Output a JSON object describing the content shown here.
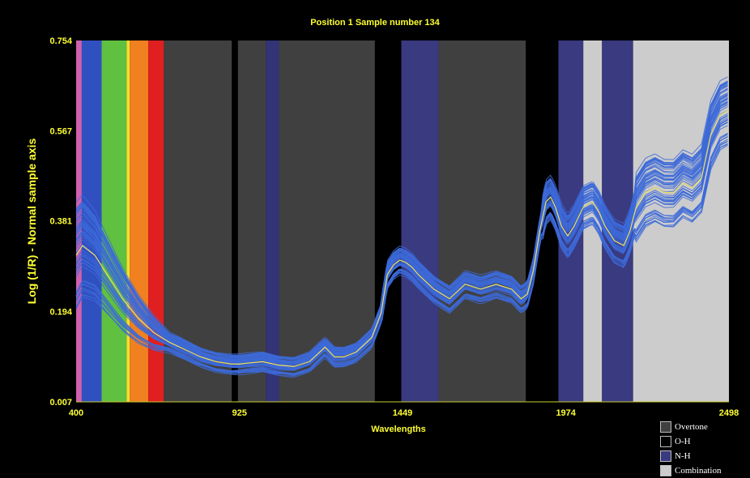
{
  "chart_data": {
    "type": "line",
    "title": "Position 1  Sample number 134",
    "xlabel": "Wavelengths",
    "ylabel": "Log (1/R) - Normal sample axis",
    "xlim": [
      400,
      2498
    ],
    "ylim": [
      0.007,
      0.754
    ],
    "x_ticks": [
      "400",
      "925",
      "1449",
      "1974",
      "2498"
    ],
    "y_ticks": [
      "0.754",
      "0.567",
      "0.381",
      "0.194",
      "0.007"
    ],
    "grid": false,
    "legend_position": "bottom-right",
    "bands": [
      {
        "from": 400,
        "to": 418,
        "color": "#d060b0"
      },
      {
        "from": 418,
        "to": 482,
        "color": "#3050c0"
      },
      {
        "from": 482,
        "to": 562,
        "color": "#60c040"
      },
      {
        "from": 562,
        "to": 572,
        "color": "#f0e030"
      },
      {
        "from": 572,
        "to": 632,
        "color": "#f08020"
      },
      {
        "from": 632,
        "to": 682,
        "color": "#e02020"
      },
      {
        "from": 682,
        "to": 900,
        "color": "#404040"
      },
      {
        "from": 920,
        "to": 1010,
        "color": "#404040"
      },
      {
        "from": 1010,
        "to": 1052,
        "color": "#333377"
      },
      {
        "from": 1052,
        "to": 1360,
        "color": "#404040"
      },
      {
        "from": 1445,
        "to": 1565,
        "color": "#3a3a80"
      },
      {
        "from": 1565,
        "to": 1845,
        "color": "#404040"
      },
      {
        "from": 1950,
        "to": 2030,
        "color": "#3a3a80"
      },
      {
        "from": 2030,
        "to": 2090,
        "color": "#cccccc"
      },
      {
        "from": 2090,
        "to": 2190,
        "color": "#3a3a80"
      },
      {
        "from": 2190,
        "to": 2498,
        "color": "#cccccc"
      }
    ],
    "mean_spectrum": {
      "name": "mean",
      "color": "#f0e060",
      "x": [
        400,
        420,
        440,
        460,
        500,
        550,
        600,
        650,
        700,
        750,
        800,
        850,
        900,
        925,
        950,
        1000,
        1050,
        1100,
        1150,
        1200,
        1230,
        1260,
        1300,
        1350,
        1380,
        1400,
        1420,
        1440,
        1460,
        1480,
        1500,
        1550,
        1600,
        1650,
        1700,
        1750,
        1800,
        1830,
        1850,
        1870,
        1890,
        1910,
        1925,
        1940,
        1960,
        1980,
        2000,
        2030,
        2060,
        2080,
        2100,
        2130,
        2160,
        2180,
        2200,
        2230,
        2260,
        2290,
        2320,
        2350,
        2380,
        2410,
        2440,
        2470,
        2498
      ],
      "y": [
        0.31,
        0.33,
        0.32,
        0.31,
        0.27,
        0.22,
        0.18,
        0.15,
        0.13,
        0.115,
        0.1,
        0.09,
        0.085,
        0.085,
        0.087,
        0.09,
        0.083,
        0.08,
        0.09,
        0.12,
        0.1,
        0.1,
        0.11,
        0.14,
        0.19,
        0.27,
        0.29,
        0.3,
        0.295,
        0.285,
        0.27,
        0.24,
        0.22,
        0.25,
        0.24,
        0.25,
        0.24,
        0.22,
        0.23,
        0.28,
        0.36,
        0.42,
        0.43,
        0.41,
        0.37,
        0.35,
        0.37,
        0.41,
        0.42,
        0.4,
        0.37,
        0.34,
        0.33,
        0.36,
        0.41,
        0.44,
        0.45,
        0.44,
        0.44,
        0.46,
        0.45,
        0.47,
        0.56,
        0.6,
        0.61
      ]
    },
    "sample_count": 60,
    "sample_color": "#3d6ad8",
    "legend": [
      {
        "label": "Overtone",
        "color": "#404040"
      },
      {
        "label": "O-H",
        "color": "#000000"
      },
      {
        "label": "N-H",
        "color": "#3a3a80"
      },
      {
        "label": "Combination",
        "color": "#cccccc"
      }
    ]
  }
}
